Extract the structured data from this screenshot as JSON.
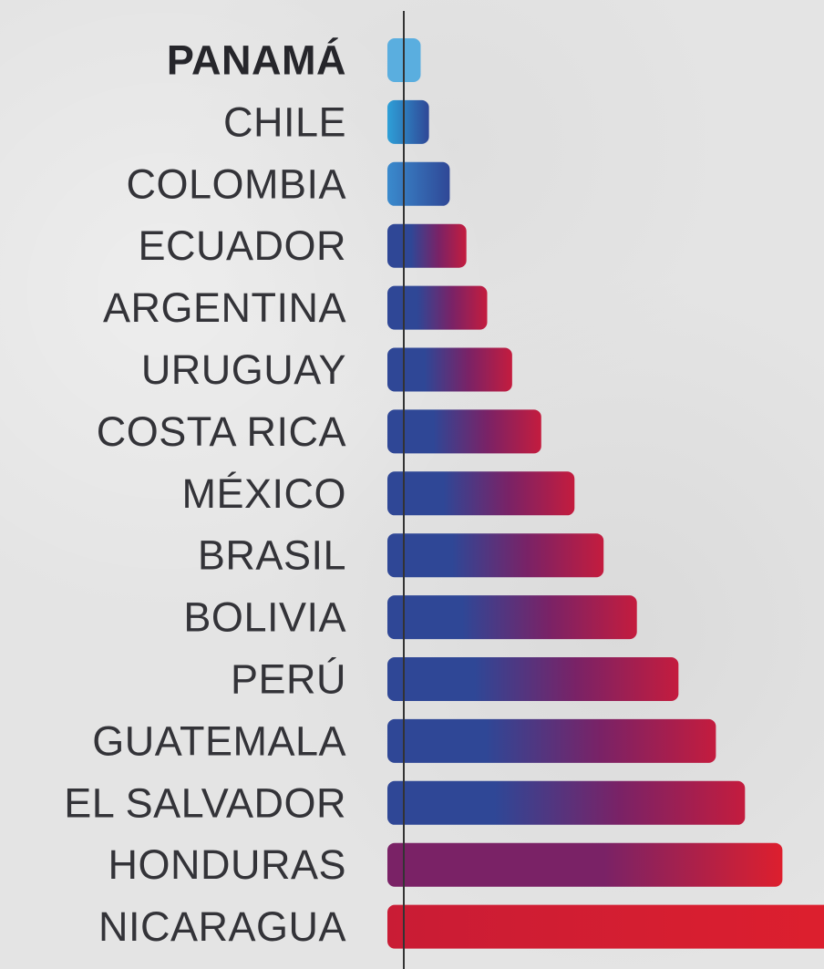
{
  "chart_data": {
    "type": "bar",
    "orientation": "horizontal",
    "categories": [
      "PANAMÁ",
      "CHILE",
      "COLOMBIA",
      "ECUADOR",
      "ARGENTINA",
      "URUGUAY",
      "COSTA RICA",
      "MÉXICO",
      "BRASIL",
      "BOLIVIA",
      "PERÚ",
      "GUATEMALA",
      "EL SALVADOR",
      "HONDURAS",
      "NICARAGUA"
    ],
    "values": [
      8,
      10,
      15,
      19,
      24,
      30,
      37,
      45,
      52,
      60,
      70,
      79,
      86,
      95,
      105
    ],
    "highlight": "PANAMÁ",
    "title": "",
    "xlabel": "",
    "ylabel": "",
    "xlim": [
      0,
      105
    ],
    "grid": false,
    "colors": {
      "low": "#5aaedf",
      "blue": "#2f4796",
      "purple": "#7a2266",
      "red": "#dd1f2e",
      "axis": "#333333",
      "label": "#333338"
    }
  }
}
